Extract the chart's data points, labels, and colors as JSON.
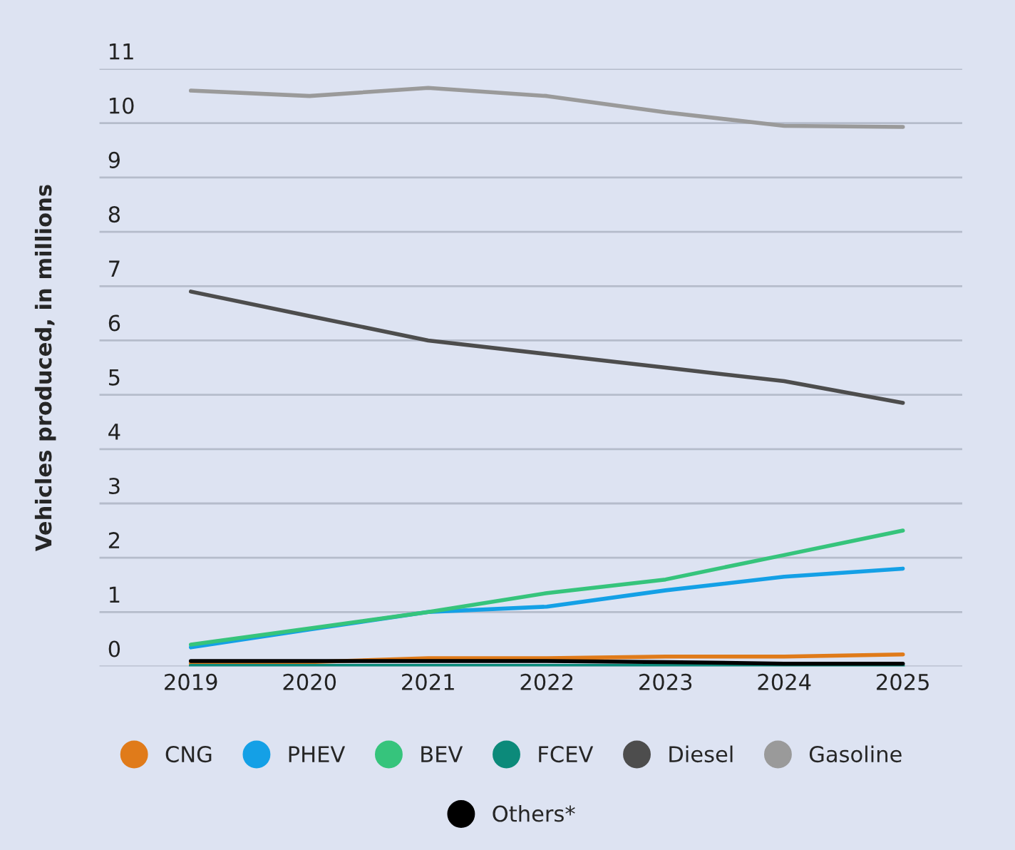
{
  "chart_data": {
    "type": "line",
    "ylabel": "Vehicles produced, in millions",
    "categories": [
      "2019",
      "2020",
      "2021",
      "2022",
      "2023",
      "2024",
      "2025"
    ],
    "series": [
      {
        "name": "CNG",
        "color": "#e07b1a",
        "values": [
          0.05,
          0.08,
          0.15,
          0.15,
          0.18,
          0.18,
          0.22
        ]
      },
      {
        "name": "PHEV",
        "color": "#14a0e6",
        "values": [
          0.35,
          0.68,
          1.0,
          1.1,
          1.4,
          1.65,
          1.8
        ]
      },
      {
        "name": "BEV",
        "color": "#36c47c",
        "values": [
          0.4,
          0.7,
          1.0,
          1.35,
          1.6,
          2.05,
          2.5
        ]
      },
      {
        "name": "FCEV",
        "color": "#0c8a7a",
        "values": [
          0.01,
          0.01,
          0.01,
          0.01,
          0.01,
          0.01,
          0.01
        ]
      },
      {
        "name": "Diesel",
        "color": "#4d4d4d",
        "values": [
          6.9,
          6.45,
          6.0,
          5.75,
          5.5,
          5.25,
          4.85
        ]
      },
      {
        "name": "Gasoline",
        "color": "#9a9a9a",
        "values": [
          10.6,
          10.5,
          10.65,
          10.5,
          10.2,
          9.95,
          9.93
        ]
      },
      {
        "name": "Others*",
        "color": "#000000",
        "values": [
          0.1,
          0.1,
          0.1,
          0.1,
          0.08,
          0.05,
          0.05
        ]
      }
    ],
    "ylim": [
      0,
      11
    ],
    "yticks": [
      0,
      1,
      2,
      3,
      4,
      5,
      6,
      7,
      8,
      9,
      10,
      11
    ],
    "grid": "y",
    "legend": "bottom",
    "marker": "none",
    "line_style": "solid"
  }
}
